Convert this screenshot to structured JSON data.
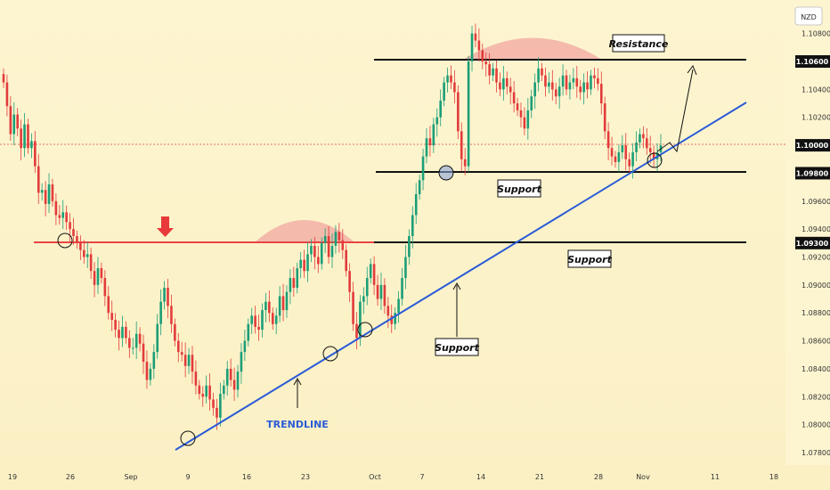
{
  "chart_data": {
    "type": "candlestick",
    "instrument": "NZD",
    "x_ticks": [
      "19",
      "26",
      "Sep",
      "9",
      "16",
      "23",
      "Oct",
      "7",
      "14",
      "21",
      "28",
      "Nov",
      "11",
      "18"
    ],
    "y_ticks": [
      "1.10800",
      "1.10600",
      "1.10400",
      "1.10200",
      "1.10000",
      "1.09800",
      "1.09600",
      "1.09400",
      "1.09200",
      "1.09000",
      "1.08800",
      "1.08600",
      "1.08400",
      "1.08200",
      "1.08000",
      "1.07800"
    ],
    "price_badges": [
      "1.10600",
      "1.10000",
      "1.09800",
      "1.09300"
    ],
    "ylim": [
      1.077,
      1.109
    ],
    "levels": {
      "resistance": 1.106,
      "support_upper": 1.098,
      "support_lower": 1.093,
      "current": 1.1
    },
    "annotations": {
      "resistance_label": "Resistance",
      "support_upper_label": "Support",
      "support_lower_label": "Support",
      "trendline_support_label": "Support",
      "trendline_label": "TRENDLINE"
    },
    "closes": [
      1.1045,
      1.1028,
      1.1008,
      1.1022,
      1.1012,
      1.0998,
      1.1015,
      1.0998,
      1.1003,
      1.0985,
      1.0966,
      1.0968,
      1.0958,
      1.0972,
      1.096,
      1.095,
      1.0948,
      1.0952,
      1.0945,
      1.094,
      1.0935,
      1.093,
      1.0925,
      1.092,
      1.0922,
      1.091,
      1.09,
      1.0912,
      1.0905,
      1.0892,
      1.088,
      1.0875,
      1.0868,
      1.0862,
      1.087,
      1.0862,
      1.0855,
      1.0855,
      1.0865,
      1.0858,
      1.0845,
      1.0832,
      1.084,
      1.0852,
      1.0872,
      1.0888,
      1.0898,
      1.0885,
      1.0872,
      1.086,
      1.0852,
      1.085,
      1.0842,
      1.085,
      1.0838,
      1.0828,
      1.0822,
      1.082,
      1.0828,
      1.0818,
      1.0812,
      1.0805,
      1.0822,
      1.0828,
      1.084,
      1.0832,
      1.0825,
      1.0838,
      1.0852,
      1.086,
      1.0872,
      1.0878,
      1.087,
      1.0868,
      1.0882,
      1.0888,
      1.088,
      1.0872,
      1.0878,
      1.0892,
      1.0882,
      1.0895,
      1.0905,
      1.0898,
      1.0912,
      1.0918,
      1.091,
      1.0922,
      1.0928,
      1.092,
      1.0915,
      1.093,
      1.0935,
      1.092,
      1.0928,
      1.0938,
      1.0932,
      1.0925,
      1.091,
      1.0895,
      1.0872,
      1.0862,
      1.0888,
      1.0892,
      1.0905,
      1.0915,
      1.09,
      1.089,
      1.09,
      1.0885,
      1.0878,
      1.0872,
      1.088,
      1.089,
      1.0905,
      1.092,
      1.0935,
      1.095,
      1.0965,
      1.0975,
      1.0992,
      1.1005,
      1.1,
      1.1015,
      1.102,
      1.1032,
      1.1045,
      1.105,
      1.1045,
      1.1038,
      1.101,
      1.099,
      1.0985,
      1.106,
      1.108,
      1.1075,
      1.1068,
      1.106,
      1.1058,
      1.105,
      1.1055,
      1.1045,
      1.104,
      1.1048,
      1.1042,
      1.1038,
      1.103,
      1.1025,
      1.102,
      1.1012,
      1.1025,
      1.1035,
      1.1045,
      1.1055,
      1.105,
      1.1042,
      1.1045,
      1.104,
      1.1035,
      1.1042,
      1.105,
      1.104,
      1.1045,
      1.1048,
      1.1042,
      1.1038,
      1.1045,
      1.104,
      1.105,
      1.1048,
      1.1044,
      1.103,
      1.101,
      1.0998,
      1.0992,
      1.0988,
      1.0995,
      1.1,
      1.099,
      1.0985,
      1.0995,
      1.1002,
      1.1008,
      1.1005,
      1.0998,
      1.0995,
      1.099,
      1.0995,
      1.1
    ]
  }
}
